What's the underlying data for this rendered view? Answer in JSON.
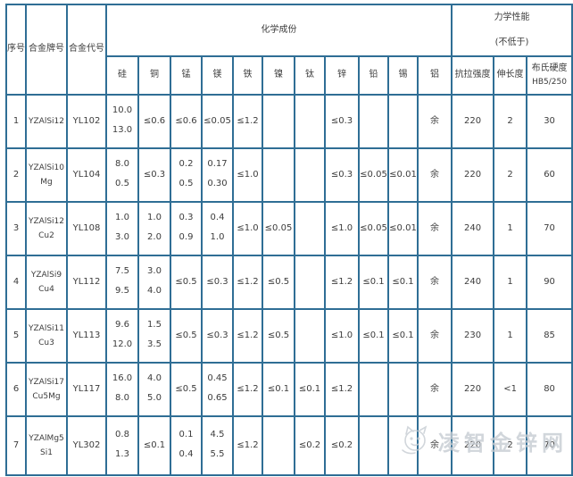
{
  "chart_data": {
    "type": "table",
    "title_columns": {
      "no": "序号",
      "grade": "合金牌号",
      "code": "合金代号"
    },
    "group_chem": "化学成份",
    "group_mech_1": "力学性能",
    "group_mech_2": "(不低于)",
    "element_columns": [
      "硅",
      "铜",
      "锰",
      "镁",
      "铁",
      "镍",
      "钛",
      "锌",
      "铅",
      "锡",
      "铝"
    ],
    "mech_columns": {
      "tensile": "抗拉强度",
      "elong": "伸长度",
      "hardness_1": "布氏硬度",
      "hardness_2": "HB5/250"
    },
    "rows": [
      {
        "no": "1",
        "grade": "YZAlSi12",
        "code": "YL102",
        "chem": [
          {
            "top": "10.0",
            "bot": "13.0"
          },
          "≤0.6",
          "≤0.6",
          "≤0.05",
          "≤1.2",
          "",
          "",
          "≤0.3",
          "",
          "",
          "余"
        ],
        "mech": [
          "220",
          "2",
          "30"
        ]
      },
      {
        "no": "2",
        "grade": "YZAlSi10Mg",
        "code": "YL104",
        "chem": [
          {
            "top": "8.0",
            "bot": "0.5"
          },
          "≤0.3",
          {
            "top": "0.2",
            "bot": "0.5"
          },
          {
            "top": "0.17",
            "bot": "0.30"
          },
          "≤1.0",
          "",
          "",
          "≤0.3",
          "≤0.05",
          "≤0.01",
          "余"
        ],
        "mech": [
          "220",
          "2",
          "60"
        ]
      },
      {
        "no": "3",
        "grade": "YZAlSi12Cu2",
        "code": "YL108",
        "chem": [
          {
            "top": "1.0",
            "bot": "3.0"
          },
          {
            "top": "1.0",
            "bot": "2.0"
          },
          {
            "top": "0.3",
            "bot": "0.9"
          },
          {
            "top": "0.4",
            "bot": "1.0"
          },
          "≤1.0",
          "≤0.05",
          "",
          "≤1.0",
          "≤0.05",
          "≤0.01",
          "余"
        ],
        "mech": [
          "240",
          "1",
          "70"
        ]
      },
      {
        "no": "4",
        "grade": "YZAlSi9Cu4",
        "code": "YL112",
        "chem": [
          {
            "top": "7.5",
            "bot": "9.5"
          },
          {
            "top": "3.0",
            "bot": "4.0"
          },
          "≤0.5",
          "≤0.3",
          "≤1.2",
          "≤0.5",
          "",
          "≤1.2",
          "≤0.1",
          "≤0.1",
          "余"
        ],
        "mech": [
          "240",
          "1",
          "90"
        ]
      },
      {
        "no": "5",
        "grade": "YZAlSi11Cu3",
        "code": "YL113",
        "chem": [
          {
            "top": "9.6",
            "bot": "12.0"
          },
          {
            "top": "1.5",
            "bot": "3.5"
          },
          "≤0.5",
          "≤0.3",
          "≤1.2",
          "≤0.5",
          "",
          "≤1.0",
          "≤0.1",
          "≤0.1",
          "余"
        ],
        "mech": [
          "230",
          "1",
          "85"
        ]
      },
      {
        "no": "6",
        "grade": "YZAlSi17Cu5Mg",
        "code": "YL117",
        "chem": [
          {
            "top": "16.0",
            "bot": "8.0"
          },
          {
            "top": "4.0",
            "bot": "5.0"
          },
          "≤0.5",
          {
            "top": "0.45",
            "bot": "0.65"
          },
          "≤1.2",
          "≤0.1",
          "≤0.1",
          "≤1.2",
          "",
          "",
          "余"
        ],
        "mech": [
          "220",
          "<1",
          "80"
        ]
      },
      {
        "no": "7",
        "grade": "YZAlMg5Si1",
        "code": "YL302",
        "chem": [
          {
            "top": "0.8",
            "bot": "1.3"
          },
          "≤0.1",
          {
            "top": "0.1",
            "bot": "0.4"
          },
          {
            "top": "4.5",
            "bot": "5.5"
          },
          "≤1.2",
          "",
          "≤0.2",
          "≤0.2",
          "",
          "",
          "余"
        ],
        "mech": [
          "220",
          "2",
          "70"
        ]
      }
    ]
  },
  "watermark": {
    "text": "凌智金锌网"
  },
  "colors": {
    "border": "#2f6e95",
    "text": "#3c3c3c",
    "watermark": "#c6ccd3"
  }
}
